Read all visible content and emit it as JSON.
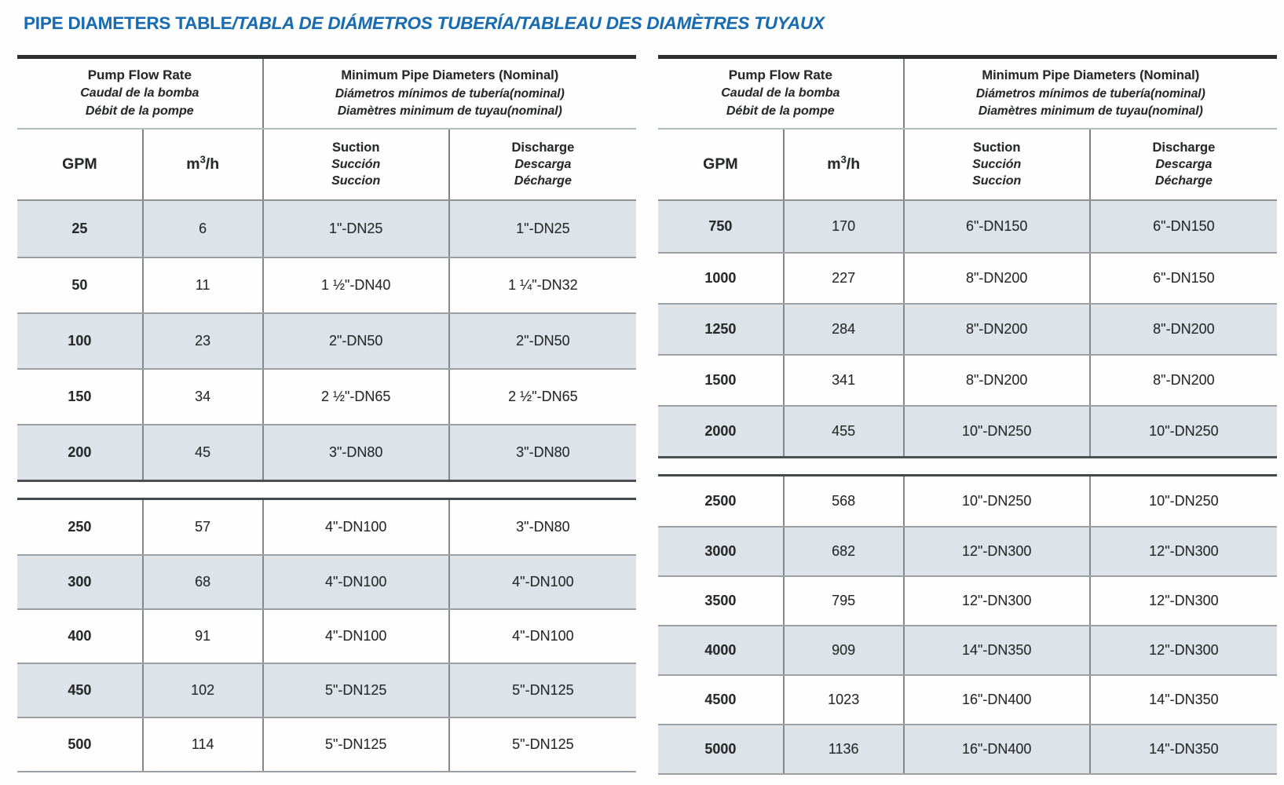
{
  "title": {
    "main": "PIPE DIAMETERS TABLE",
    "translations": "/TABLA DE DIÁMETROS TUBERÍA/TABLEAU DES DIAMÈTRES TUYAUX"
  },
  "colors": {
    "title_blue": "#1a6cb0",
    "row_shade": "#dde3e8",
    "text": "#28292b",
    "top_border_dark": "#2e2f30",
    "row_line_gray": "#9aa0a4",
    "block_divider_dark": "#44484a"
  },
  "header": {
    "flow": [
      "Pump Flow Rate",
      "Caudal de la bomba",
      "Débit de la pompe"
    ],
    "diam": [
      "Minimum Pipe Diameters (Nominal)",
      "Diámetros mínimos de tubería(nominal)",
      "Diamètres minimum de tuyau(nominal)"
    ],
    "gpm": "GPM",
    "m3h": {
      "base": "m",
      "sup": "3",
      "rest": "/h"
    },
    "suction": [
      "Suction",
      "Succión",
      "Succion"
    ],
    "discharge": [
      "Discharge",
      "Descarga",
      "Décharge"
    ]
  },
  "tables": [
    {
      "id": "left",
      "blocks": [
        {
          "rows": [
            [
              "25",
              "6",
              "1\"-DN25",
              "1\"-DN25"
            ],
            [
              "50",
              "11",
              "1 ½\"-DN40",
              "1 ¼\"-DN32"
            ],
            [
              "100",
              "23",
              "2\"-DN50",
              "2\"-DN50"
            ],
            [
              "150",
              "34",
              "2 ½\"-DN65",
              "2 ½\"-DN65"
            ],
            [
              "200",
              "45",
              "3\"-DN80",
              "3\"-DN80"
            ]
          ]
        },
        {
          "rows": [
            [
              "250",
              "57",
              "4\"-DN100",
              "3\"-DN80"
            ],
            [
              "300",
              "68",
              "4\"-DN100",
              "4\"-DN100"
            ],
            [
              "400",
              "91",
              "4\"-DN100",
              "4\"-DN100"
            ],
            [
              "450",
              "102",
              "5\"-DN125",
              "5\"-DN125"
            ],
            [
              "500",
              "114",
              "5\"-DN125",
              "5\"-DN125"
            ]
          ]
        }
      ]
    },
    {
      "id": "right",
      "blocks": [
        {
          "rows": [
            [
              "750",
              "170",
              "6\"-DN150",
              "6\"-DN150"
            ],
            [
              "1000",
              "227",
              "8\"-DN200",
              "6\"-DN150"
            ],
            [
              "1250",
              "284",
              "8\"-DN200",
              "8\"-DN200"
            ],
            [
              "1500",
              "341",
              "8\"-DN200",
              "8\"-DN200"
            ],
            [
              "2000",
              "455",
              "10\"-DN250",
              "10\"-DN250"
            ]
          ]
        },
        {
          "rows": [
            [
              "2500",
              "568",
              "10\"-DN250",
              "10\"-DN250"
            ],
            [
              "3000",
              "682",
              "12\"-DN300",
              "12\"-DN300"
            ],
            [
              "3500",
              "795",
              "12\"-DN300",
              "12\"-DN300"
            ],
            [
              "4000",
              "909",
              "14\"-DN350",
              "12\"-DN300"
            ],
            [
              "4500",
              "1023",
              "16\"-DN400",
              "14\"-DN350"
            ],
            [
              "5000",
              "1136",
              "16\"-DN400",
              "14\"-DN350"
            ]
          ]
        }
      ]
    }
  ]
}
